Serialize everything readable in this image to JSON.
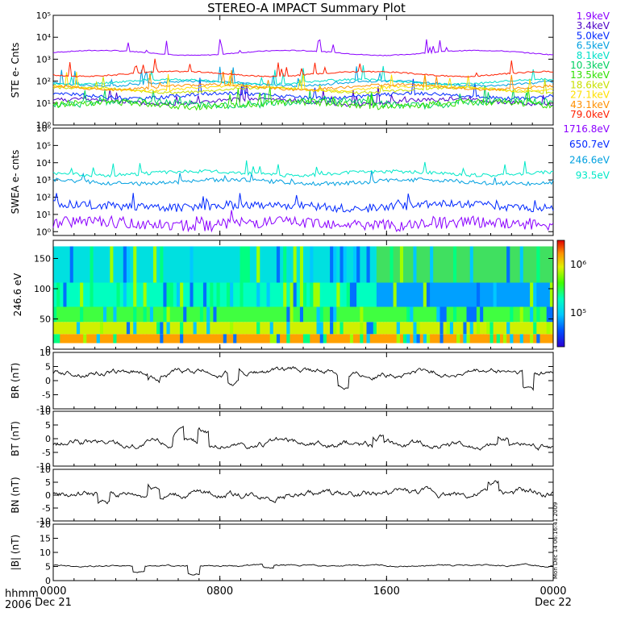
{
  "title": "STEREO-A IMPACT Summary Plot",
  "footer": {
    "hhmm": "hhmm",
    "year": "2006"
  },
  "side_stamp": "Mon Dec 14 06:16:41 2009",
  "chart_data": [
    {
      "id": "ste",
      "type": "line",
      "ylabel": "STE e- Cnts",
      "yscale": "log",
      "ylim": [
        1,
        100000
      ],
      "yticks": [
        "10⁰",
        "10¹",
        "10²",
        "10³",
        "10⁴",
        "10⁵"
      ],
      "series": [
        {
          "name": "1.9keV",
          "color": "#8b00ff",
          "level": 2000,
          "noise": 0.02
        },
        {
          "name": "3.4keV",
          "color": "#4b00c8",
          "level": 12,
          "noise": 0.1
        },
        {
          "name": "5.0keV",
          "color": "#0028ff",
          "level": 22,
          "noise": 0.08
        },
        {
          "name": "6.5keV",
          "color": "#00a0e0",
          "level": 80,
          "noise": 0.05
        },
        {
          "name": "8.1keV",
          "color": "#00e0c8",
          "level": 95,
          "noise": 0.05
        },
        {
          "name": "10.3keV",
          "color": "#00d060",
          "level": 10,
          "noise": 0.15
        },
        {
          "name": "13.5keV",
          "color": "#30e000",
          "level": 9,
          "noise": 0.15
        },
        {
          "name": "18.6keV",
          "color": "#c8e000",
          "level": 40,
          "noise": 0.06
        },
        {
          "name": "27.1keV",
          "color": "#ffe000",
          "level": 48,
          "noise": 0.06
        },
        {
          "name": "43.1keV",
          "color": "#ff9000",
          "level": 55,
          "noise": 0.06
        },
        {
          "name": "79.0keV",
          "color": "#ff2000",
          "level": 220,
          "noise": 0.03
        }
      ]
    },
    {
      "id": "swea",
      "type": "line",
      "ylabel": "SWEA e- cnts",
      "yscale": "log",
      "ylim": [
        0.6,
        1000000
      ],
      "yticks": [
        "10⁰",
        "10¹",
        "10²",
        "10³",
        "10⁴",
        "10⁵",
        "10⁶"
      ],
      "series": [
        {
          "name": "1716.8eV",
          "color": "#8b00ff",
          "level": 3,
          "noise": 0.35
        },
        {
          "name": "650.7eV",
          "color": "#0028ff",
          "level": 30,
          "noise": 0.25
        },
        {
          "name": "246.6eV",
          "color": "#00a0e0",
          "level": 800,
          "noise": 0.12
        },
        {
          "name": "93.5eV",
          "color": "#00e8c8",
          "level": 2500,
          "noise": 0.1
        }
      ]
    },
    {
      "id": "spectrogram",
      "type": "heatmap",
      "ylabel": "246.6 eV",
      "ylim": [
        0,
        180
      ],
      "yticks": [
        0,
        50,
        100,
        150
      ],
      "colorbar_ticks": [
        "10⁵",
        "10⁶"
      ]
    },
    {
      "id": "br",
      "type": "line",
      "ylabel": "BR (nT)",
      "ylim": [
        -10,
        10
      ],
      "yticks": [
        -10,
        -5,
        0,
        5,
        10
      ],
      "mean": 3,
      "amp": 2.5,
      "dips": [
        [
          0.36,
          -4
        ],
        [
          0.58,
          -4
        ],
        [
          0.95,
          -6
        ],
        [
          0.2,
          -2
        ]
      ]
    },
    {
      "id": "bt",
      "type": "line",
      "ylabel": "BT (nT)",
      "ylim": [
        -10,
        10
      ],
      "yticks": [
        -10,
        -5,
        0,
        5,
        10
      ],
      "mean": -2,
      "amp": 3,
      "dips": [
        [
          0.25,
          4
        ],
        [
          0.3,
          5
        ],
        [
          0.65,
          3
        ],
        [
          0.9,
          2
        ]
      ]
    },
    {
      "id": "bn",
      "type": "line",
      "ylabel": "BN (nT)",
      "ylim": [
        -10,
        10
      ],
      "yticks": [
        -10,
        -5,
        0,
        5,
        10
      ],
      "mean": 0.5,
      "amp": 3.2,
      "dips": [
        [
          0.1,
          -4
        ],
        [
          0.2,
          4
        ],
        [
          0.88,
          3
        ]
      ]
    },
    {
      "id": "bmag",
      "type": "line",
      "ylabel": "|B| (nT)",
      "ylim": [
        0,
        20
      ],
      "yticks": [
        0,
        5,
        10,
        15,
        20
      ],
      "mean": 5.3,
      "amp": 0.7,
      "dips": [
        [
          0.17,
          -2
        ],
        [
          0.28,
          -3
        ],
        [
          0.43,
          -1
        ]
      ]
    }
  ],
  "x_axis": {
    "ticks": [
      {
        "value": 0,
        "time": "0000",
        "date": "Dec 21"
      },
      {
        "value": 8,
        "time": "0800",
        "date": ""
      },
      {
        "value": 16,
        "time": "1600",
        "date": ""
      },
      {
        "value": 24,
        "time": "0000",
        "date": "Dec 22"
      }
    ],
    "range_hours": [
      0,
      24
    ]
  }
}
